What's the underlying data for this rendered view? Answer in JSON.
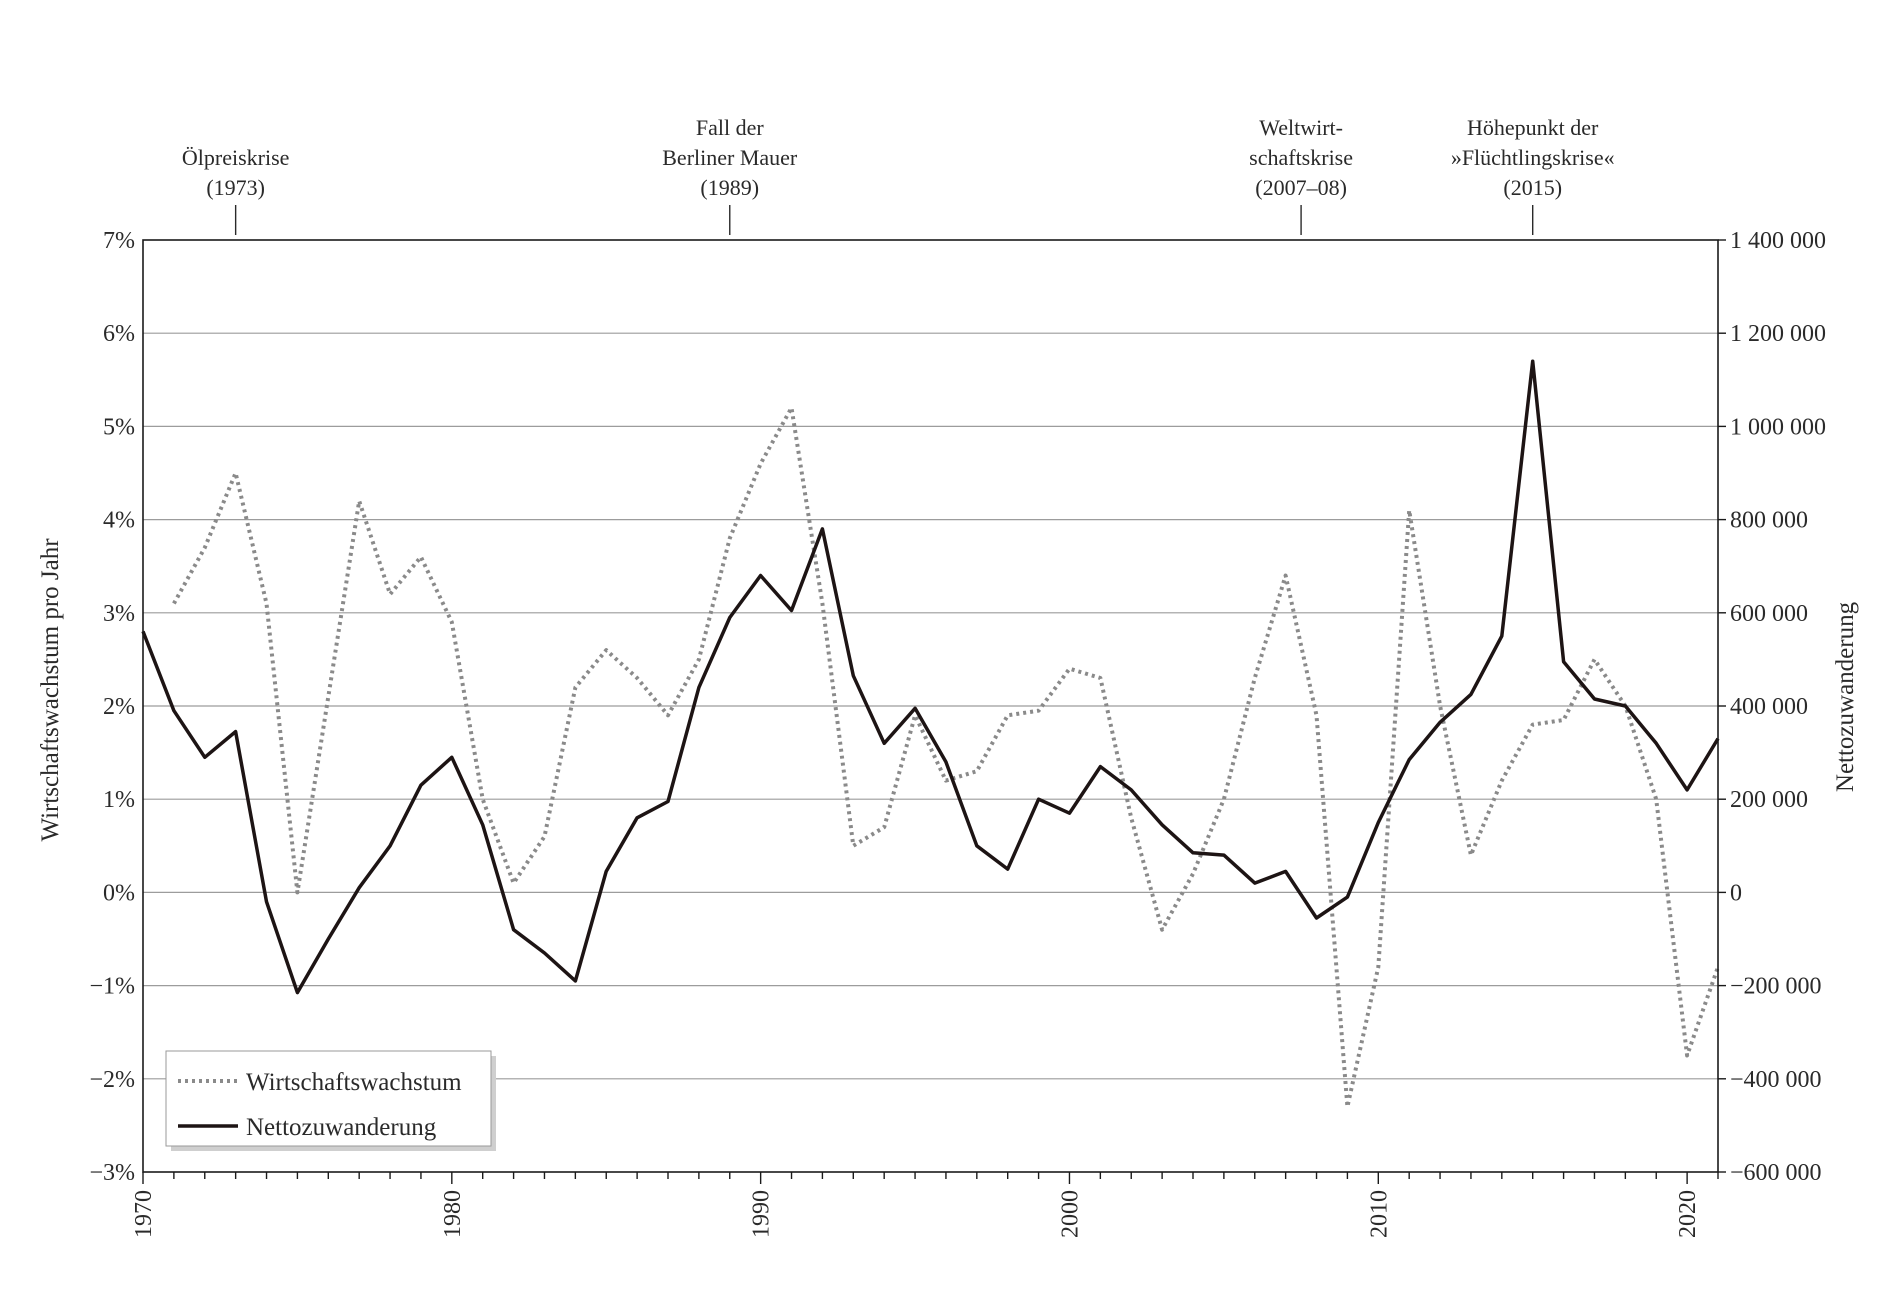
{
  "chart_data": {
    "type": "line",
    "annotations": [
      {
        "lines": [
          "Ölpreiskrise",
          "(1973)"
        ],
        "year": 1973
      },
      {
        "lines": [
          "Fall der",
          "Berliner Mauer",
          "(1989)"
        ],
        "year": 1989
      },
      {
        "lines": [
          "Weltwirt-",
          "schaftskrise",
          "(2007–08)"
        ],
        "year": 2007.5
      },
      {
        "lines": [
          "Höhepunkt der",
          "»Flüchtlingskrise«",
          "(2015)"
        ],
        "year": 2015
      }
    ],
    "ylabel_left": "Wirtschaftswachstum pro Jahr",
    "ylabel_right": "Nettozuwanderung",
    "xlim": [
      1970,
      2021
    ],
    "x_ticks": [
      "1970",
      "1980",
      "1990",
      "2000",
      "2010",
      "2020"
    ],
    "y_left_lim": [
      -3,
      7
    ],
    "y_left_ticks": [
      "−3%",
      "−2%",
      "−1%",
      "0%",
      "1%",
      "2%",
      "3%",
      "4%",
      "5%",
      "6%",
      "7%"
    ],
    "y_right_lim": [
      -600000,
      1400000
    ],
    "y_right_ticks": [
      "−600 000",
      "−400 000",
      "−200 000",
      "0",
      "200 000",
      "400 000",
      "600 000",
      "800 000",
      "1 000 000",
      "1 200 000",
      "1 400 000"
    ],
    "grid": true,
    "legend_position": "bottom-left",
    "series": [
      {
        "name": "Wirtschaftswachstum",
        "axis": "left",
        "style": "dotted",
        "color": "#8a8a8a",
        "x": [
          1971,
          1972,
          1973,
          1974,
          1975,
          1976,
          1977,
          1978,
          1979,
          1980,
          1981,
          1982,
          1983,
          1984,
          1985,
          1986,
          1987,
          1988,
          1989,
          1990,
          1991,
          1992,
          1993,
          1994,
          1995,
          1996,
          1997,
          1998,
          1999,
          2000,
          2001,
          2002,
          2003,
          2004,
          2005,
          2006,
          2007,
          2008,
          2009,
          2010,
          2011,
          2012,
          2013,
          2014,
          2015,
          2016,
          2017,
          2018,
          2019,
          2020,
          2021
        ],
        "values": [
          3.1,
          3.7,
          4.5,
          3.1,
          0.0,
          2.1,
          4.2,
          3.2,
          3.6,
          2.9,
          1.0,
          0.1,
          0.6,
          2.2,
          2.6,
          2.3,
          1.9,
          2.5,
          3.8,
          4.6,
          5.2,
          3.1,
          0.5,
          0.7,
          1.9,
          1.2,
          1.3,
          1.9,
          1.95,
          2.4,
          2.3,
          0.8,
          -0.4,
          0.2,
          1.0,
          2.3,
          3.4,
          1.9,
          -2.3,
          -0.8,
          4.1,
          2.0,
          0.4,
          1.2,
          1.8,
          1.85,
          2.5,
          2.0,
          1.0,
          -1.75,
          -0.8
        ]
      },
      {
        "name": "Nettozuwanderung",
        "axis": "right",
        "style": "solid",
        "color": "#1d1414",
        "x": [
          1970,
          1971,
          1972,
          1973,
          1974,
          1975,
          1976,
          1977,
          1978,
          1979,
          1980,
          1981,
          1982,
          1983,
          1984,
          1985,
          1986,
          1987,
          1988,
          1989,
          1990,
          1991,
          1992,
          1993,
          1994,
          1995,
          1996,
          1997,
          1998,
          1999,
          2000,
          2001,
          2002,
          2003,
          2004,
          2005,
          2006,
          2007,
          2008,
          2009,
          2010,
          2011,
          2012,
          2013,
          2014,
          2015,
          2016,
          2017,
          2018,
          2019,
          2020,
          2021
        ],
        "values": [
          560000,
          390000,
          290000,
          345000,
          -20000,
          -215000,
          -100000,
          10000,
          100000,
          230000,
          290000,
          145000,
          -80000,
          -130000,
          -190000,
          45000,
          160000,
          195000,
          440000,
          590000,
          680000,
          605000,
          780000,
          465000,
          320000,
          395000,
          280000,
          100000,
          50000,
          200000,
          170000,
          270000,
          220000,
          145000,
          85000,
          80000,
          20000,
          45000,
          -55000,
          -10000,
          150000,
          285000,
          365000,
          425000,
          550000,
          1140000,
          495000,
          415000,
          400000,
          320000,
          220000,
          330000
        ]
      }
    ]
  }
}
